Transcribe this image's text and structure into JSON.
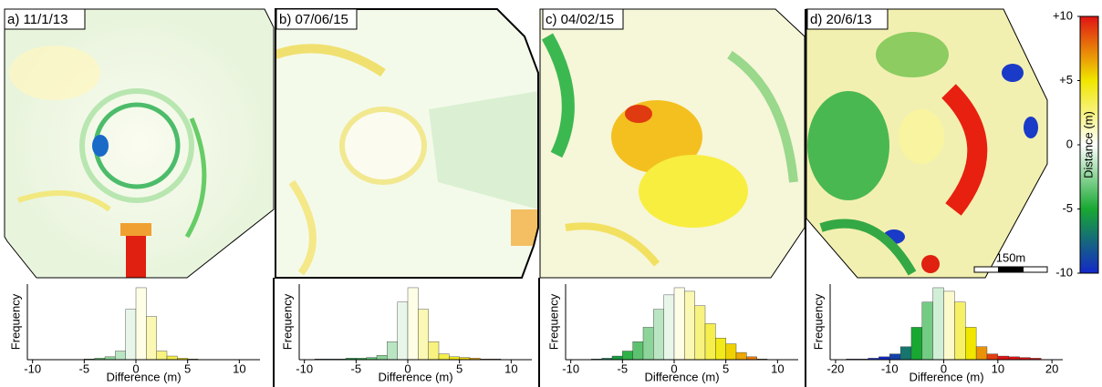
{
  "panels": [
    {
      "label": "a) 11/1/13",
      "histogram": {
        "type": "histogram",
        "xlabel": "Difference (m)",
        "ylabel": "Frequency",
        "bins": [
          -10,
          -9,
          -8,
          -7,
          -6,
          -5,
          -4,
          -3,
          -2,
          -1,
          0,
          1,
          2,
          3,
          4,
          5,
          6,
          7,
          8,
          9,
          10
        ],
        "counts": [
          0,
          0,
          0,
          0,
          0,
          1,
          2,
          4,
          12,
          70,
          100,
          60,
          12,
          5,
          2,
          1,
          0,
          0,
          0,
          0
        ],
        "xlim": [
          -10.5,
          12
        ],
        "xticks": [
          -10,
          -5,
          0,
          5,
          10
        ],
        "ylim": [
          0,
          105
        ]
      }
    },
    {
      "label": "b) 07/06/15",
      "histogram": {
        "type": "histogram",
        "xlabel": "Difference (m)",
        "ylabel": "Frequency",
        "bins": [
          -10,
          -9,
          -8,
          -7,
          -6,
          -5,
          -4,
          -3,
          -2,
          -1,
          0,
          1,
          2,
          3,
          4,
          5,
          6,
          7,
          8,
          9,
          10
        ],
        "counts": [
          0,
          1,
          1,
          1,
          2,
          2,
          3,
          6,
          25,
          80,
          100,
          70,
          25,
          8,
          4,
          3,
          2,
          1,
          1,
          0
        ],
        "xlim": [
          -10.5,
          12
        ],
        "xticks": [
          -10,
          -5,
          0,
          5,
          10
        ],
        "ylim": [
          0,
          105
        ]
      }
    },
    {
      "label": "c) 04/02/15",
      "histogram": {
        "type": "histogram",
        "xlabel": "Difference (m)",
        "ylabel": "Frequency",
        "bins": [
          -10,
          -9,
          -8,
          -7,
          -6,
          -5,
          -4,
          -3,
          -2,
          -1,
          0,
          1,
          2,
          3,
          4,
          5,
          6,
          7,
          8,
          9,
          10
        ],
        "counts": [
          0,
          0,
          1,
          2,
          5,
          12,
          25,
          45,
          70,
          90,
          100,
          95,
          75,
          50,
          30,
          22,
          10,
          4,
          1,
          0
        ],
        "xlim": [
          -10.5,
          12
        ],
        "xticks": [
          -10,
          -5,
          0,
          5,
          10
        ],
        "ylim": [
          0,
          105
        ]
      }
    },
    {
      "label": "d) 20/6/13",
      "histogram": {
        "type": "histogram",
        "xlabel": "Difference (m)",
        "ylabel": "Frequency",
        "bins": [
          -20,
          -18,
          -16,
          -14,
          -12,
          -10,
          -8,
          -6,
          -4,
          -2,
          0,
          2,
          4,
          6,
          8,
          10,
          12,
          14,
          16,
          18,
          20
        ],
        "counts": [
          0,
          1,
          1,
          2,
          4,
          8,
          18,
          45,
          80,
          100,
          95,
          80,
          45,
          18,
          8,
          5,
          4,
          3,
          2,
          0
        ],
        "xlim": [
          -21,
          22
        ],
        "xticks": [
          -20,
          -10,
          0,
          10,
          20
        ],
        "ylim": [
          0,
          105
        ]
      }
    }
  ],
  "colorbar": {
    "title": "Distance (m)",
    "lim": [
      -10,
      10
    ],
    "ticks": [
      {
        "value": 10,
        "label": "+10"
      },
      {
        "value": 5,
        "label": "+5"
      },
      0,
      -5,
      -10
    ],
    "colors": [
      "#1428c8",
      "#18a832",
      "#ffffff",
      "#f0e600",
      "#e01414"
    ]
  },
  "scale_bar": "150m"
}
